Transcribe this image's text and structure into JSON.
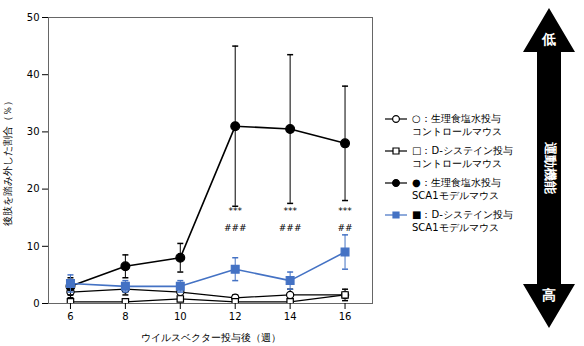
{
  "chart_data": {
    "type": "line",
    "xlabel": "ウイルスベクター投与後（週）",
    "ylabel": "後肢を踏み外した割合（％）",
    "x": [
      6,
      8,
      10,
      12,
      14,
      16
    ],
    "xlim": [
      5.2,
      17
    ],
    "xticks": [
      6,
      8,
      10,
      12,
      14,
      16
    ],
    "ylim": [
      0,
      50
    ],
    "yticks": [
      0,
      10,
      20,
      30,
      40,
      50
    ],
    "grid": false,
    "legend": "right",
    "series": [
      {
        "name": "○：生理食塩水投与\nコントロールマウス",
        "color": "#000000",
        "marker": "open_circle",
        "values": [
          2.0,
          2.5,
          2.0,
          1.0,
          1.5,
          1.5
        ],
        "errors": [
          1.0,
          1.0,
          1.0,
          0.5,
          1.0,
          1.0
        ]
      },
      {
        "name": "□：D-システイン投与\nコントロールマウス",
        "color": "#000000",
        "marker": "open_square",
        "values": [
          0.3,
          0.3,
          0.8,
          0.3,
          0.3,
          1.5
        ],
        "errors": [
          0.3,
          0.3,
          0.4,
          0.2,
          0.3,
          0.4
        ]
      },
      {
        "name": "●：生理食塩水投与\nSCA1モデルマウス",
        "color": "#000000",
        "marker": "circle",
        "values": [
          3.0,
          6.5,
          8.0,
          31.0,
          30.5,
          28.0
        ],
        "errors": [
          1.5,
          2.0,
          2.5,
          14.0,
          13.0,
          10.0
        ]
      },
      {
        "name": "■：D-システイン投与\nSCA1モデルマウス",
        "color": "#4472C4",
        "marker": "square",
        "values": [
          3.5,
          3.0,
          3.0,
          6.0,
          4.0,
          9.0
        ],
        "errors": [
          1.5,
          1.0,
          1.0,
          2.0,
          1.5,
          3.0
        ]
      }
    ],
    "annotations": [
      {
        "text": "***",
        "x": 12,
        "y": 17.5
      },
      {
        "text": "###",
        "x": 12,
        "y": 14.5
      },
      {
        "text": "***",
        "x": 14,
        "y": 17.5
      },
      {
        "text": "###",
        "x": 14,
        "y": 14.5
      },
      {
        "text": "***",
        "x": 16,
        "y": 17.5
      },
      {
        "text": "##",
        "x": 16,
        "y": 14.5
      },
      {
        "text": "低"
      },
      {
        "text": "運動機能"
      },
      {
        "text": "高"
      }
    ]
  }
}
